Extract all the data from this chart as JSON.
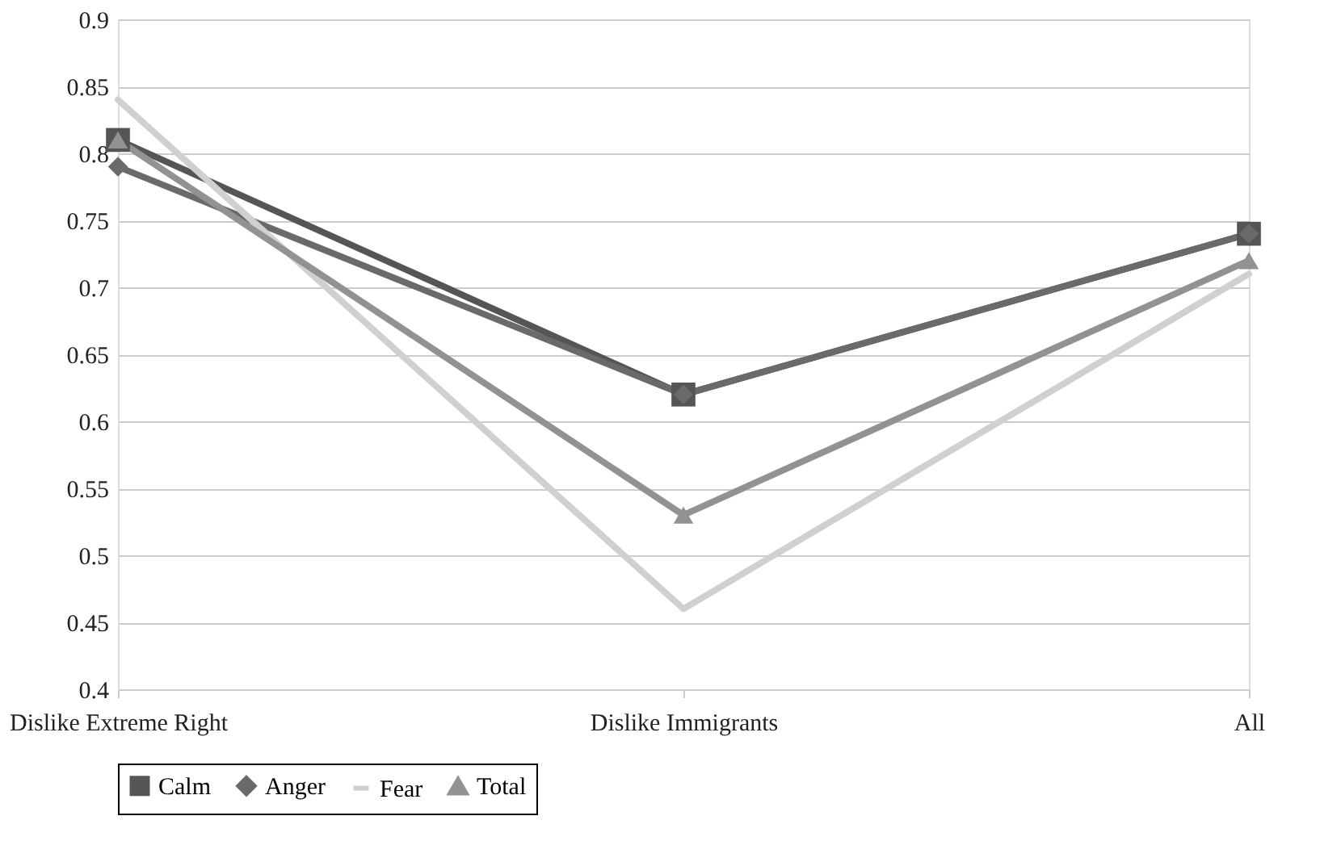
{
  "chart_data": {
    "type": "line",
    "categories": [
      "Dislike Extreme Right",
      "Dislike Immigrants",
      "All"
    ],
    "series": [
      {
        "name": "Calm",
        "color": "#555555",
        "marker": "square",
        "values": [
          0.81,
          0.62,
          0.74
        ]
      },
      {
        "name": "Anger",
        "color": "#6a6a6a",
        "marker": "diamond",
        "values": [
          0.79,
          0.62,
          0.74
        ]
      },
      {
        "name": "Fear",
        "color": "#d0d0d0",
        "marker": "none",
        "values": [
          0.84,
          0.46,
          0.71
        ]
      },
      {
        "name": "Total",
        "color": "#929292",
        "marker": "triangle",
        "values": [
          0.81,
          0.53,
          0.72
        ]
      }
    ],
    "ylim": [
      0.4,
      0.9
    ],
    "yticks": [
      0.4,
      0.45,
      0.5,
      0.55,
      0.6,
      0.65,
      0.7,
      0.75,
      0.8,
      0.85,
      0.9
    ],
    "grid": "y",
    "legend": "bottom",
    "line_style": "solid"
  }
}
